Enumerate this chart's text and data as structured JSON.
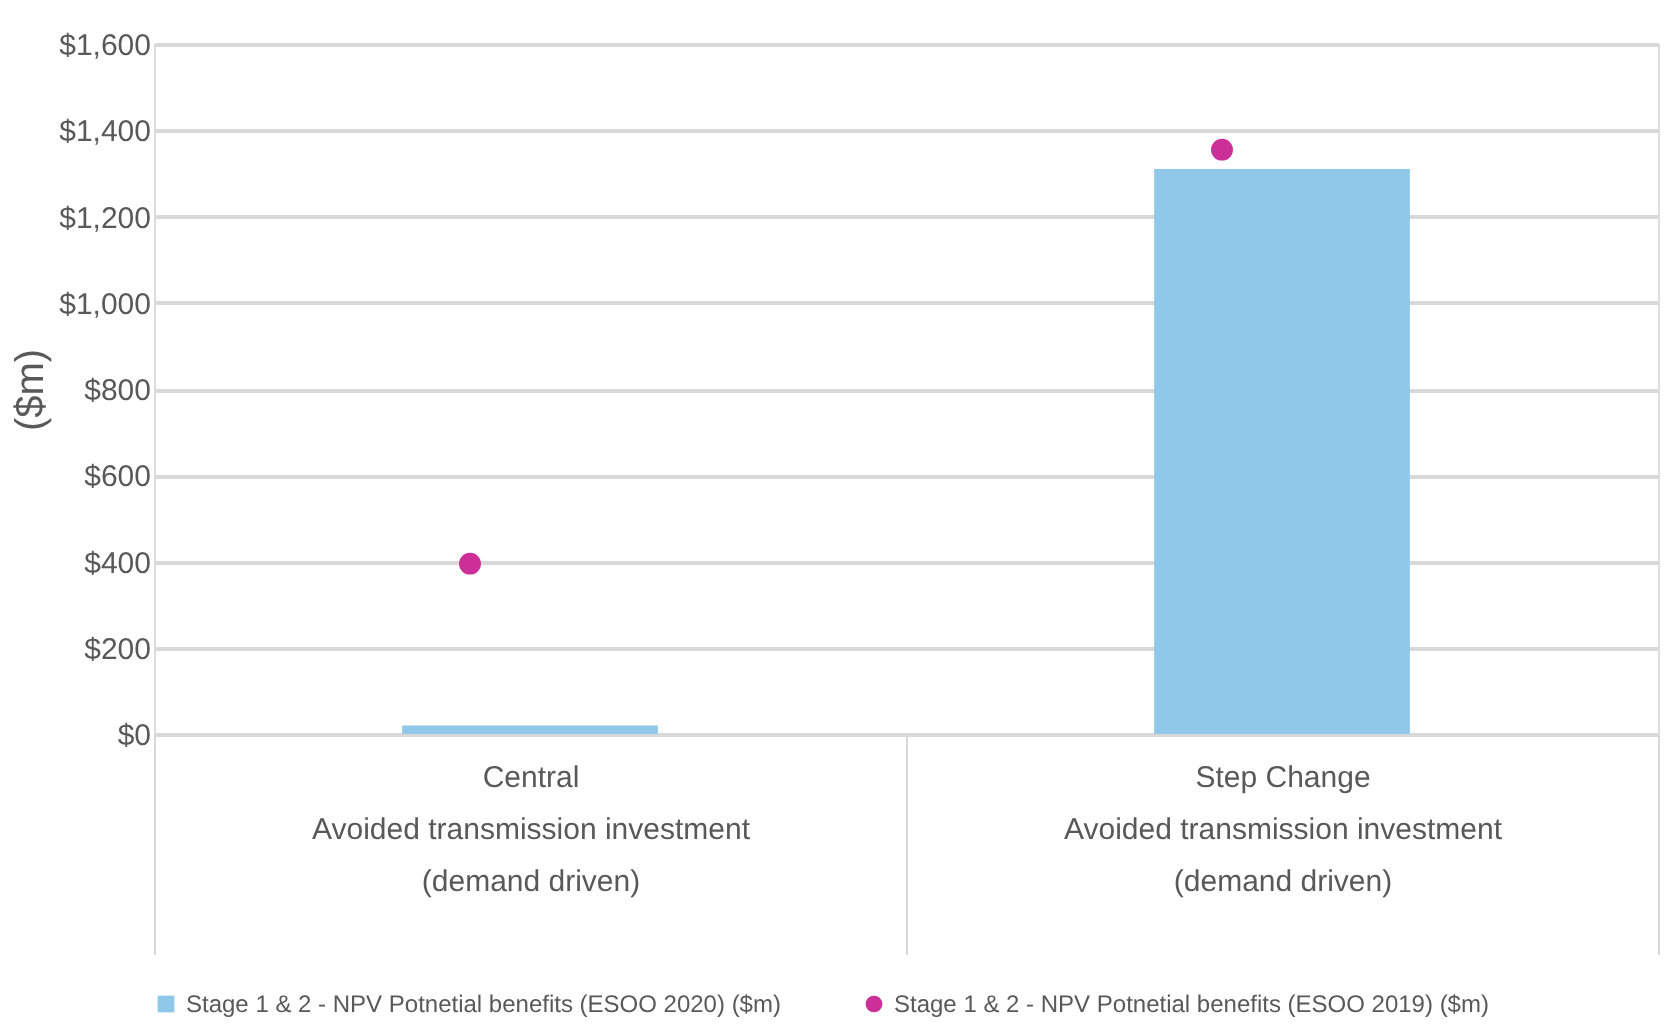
{
  "chart_data": {
    "type": "bar",
    "ylabel": "($m)",
    "categories": [
      "Central\nAvoided transmission investment\n(demand driven)",
      "Step Change\nAvoided transmission investment\n(demand driven)"
    ],
    "series": [
      {
        "name": "Stage 1 & 2 - NPV Potnetial benefits (ESOO 2020) ($m)",
        "color": "#8fc8e8",
        "type": "bar",
        "values": [
          20,
          1310
        ]
      },
      {
        "name": "Stage 1 & 2 - NPV Potnetial benefits (ESOO 2019) ($m)",
        "color": "#cc2f97",
        "type": "scatter",
        "values": [
          395,
          1355
        ]
      }
    ],
    "ylim": [
      0,
      1600
    ],
    "yticks": [
      {
        "value": 0,
        "label": "$0"
      },
      {
        "value": 200,
        "label": "$200"
      },
      {
        "value": 400,
        "label": "$400"
      },
      {
        "value": 600,
        "label": "$600"
      },
      {
        "value": 800,
        "label": "$800"
      },
      {
        "value": 1000,
        "label": "$1,000"
      },
      {
        "value": 1200,
        "label": "$1,200"
      },
      {
        "value": 1400,
        "label": "$1,400"
      },
      {
        "value": 1600,
        "label": "$1,600"
      }
    ],
    "grid": "y",
    "legend": "bottom"
  }
}
